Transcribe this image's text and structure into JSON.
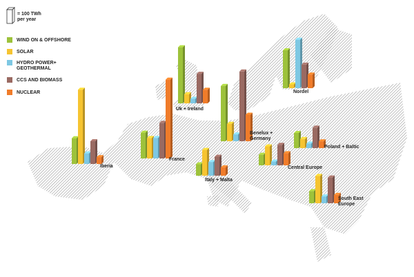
{
  "chart_data": {
    "type": "map-bar",
    "legend_title": [
      "= 100 TWh",
      "per year"
    ],
    "categories": [
      "Iberia",
      "Uk + Ireland",
      "Nordel",
      "France",
      "Benelux + Germany",
      "Italy + Malta",
      "Central Europe",
      "Poland + Baltic",
      "South East Europe"
    ],
    "series": [
      {
        "name": "WIND ON & OFFSHORE",
        "color": "#9dc23b",
        "values": [
          170,
          370,
          250,
          170,
          365,
          75,
          70,
          100,
          80
        ]
      },
      {
        "name": "SOLAR",
        "color": "#f6c431",
        "values": [
          490,
          60,
          25,
          135,
          115,
          170,
          125,
          60,
          180
        ]
      },
      {
        "name": "HYDRO POWER+ GEOTHERMAL",
        "color": "#7ec8e3",
        "values": [
          70,
          30,
          320,
          135,
          45,
          90,
          25,
          30,
          45
        ]
      },
      {
        "name": "CCS AND BIOMASS",
        "color": "#9a6a62",
        "values": [
          150,
          195,
          155,
          235,
          460,
          125,
          135,
          135,
          170
        ]
      },
      {
        "name": "NUCLEAR",
        "color": "#f07c2a",
        "values": [
          45,
          90,
          90,
          520,
          175,
          55,
          80,
          45,
          55
        ]
      }
    ]
  }
}
